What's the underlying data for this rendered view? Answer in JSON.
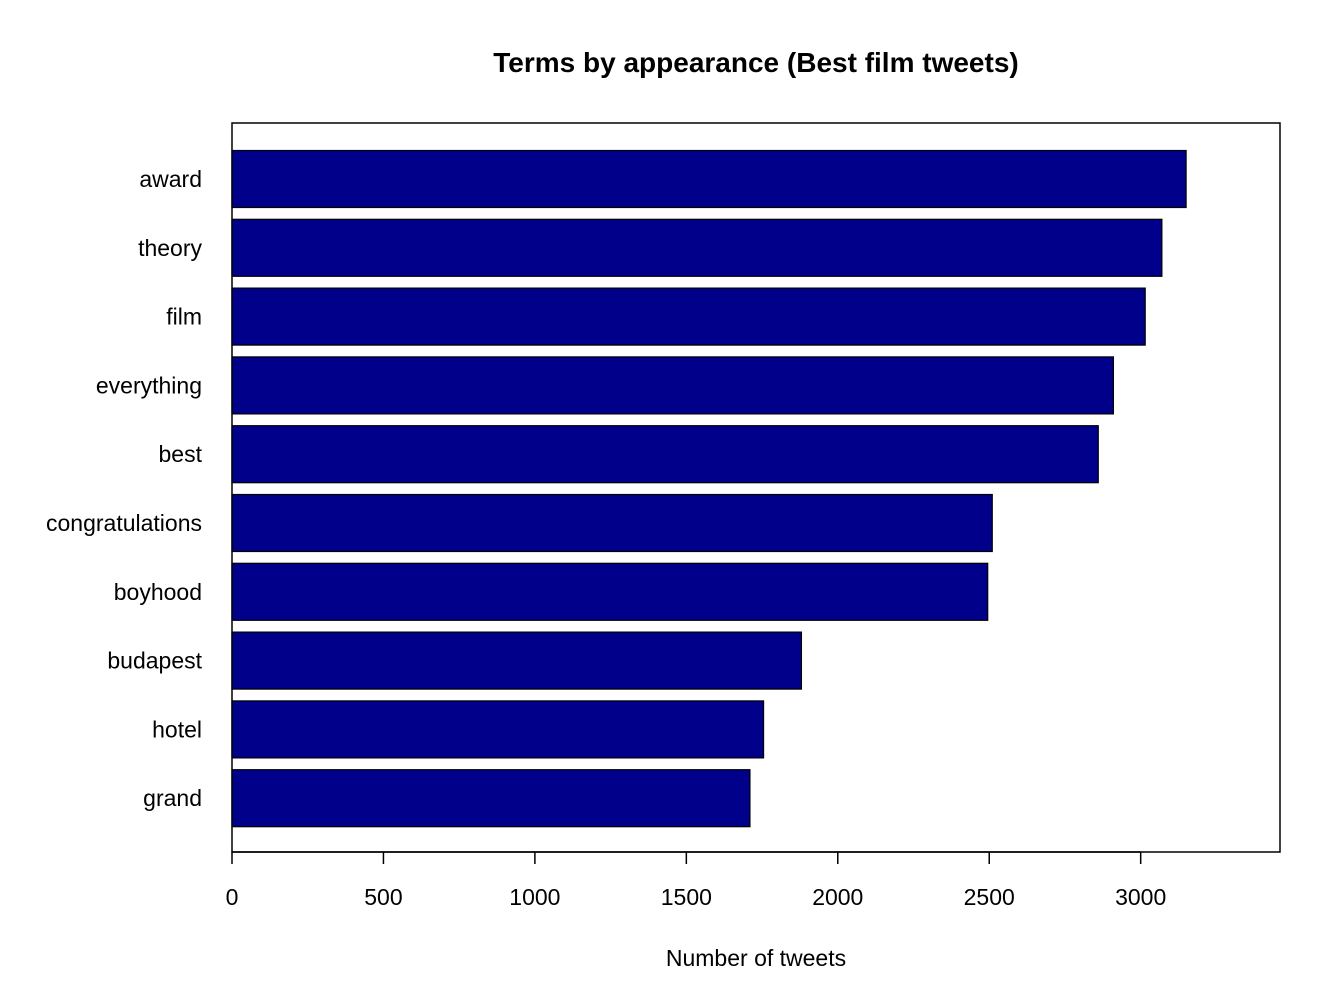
{
  "chart_data": {
    "type": "bar",
    "orientation": "horizontal",
    "title": "Terms by appearance (Best film tweets)",
    "xlabel": "Number of tweets",
    "ylabel": "",
    "categories": [
      "award",
      "theory",
      "film",
      "everything",
      "best",
      "congratulations",
      "boyhood",
      "budapest",
      "hotel",
      "grand"
    ],
    "values": [
      3150,
      3070,
      3015,
      2910,
      2860,
      2510,
      2495,
      1880,
      1755,
      1710
    ],
    "xlim": [
      0,
      3460
    ],
    "xticks": [
      0,
      500,
      1000,
      1500,
      2000,
      2500,
      3000
    ],
    "bar_color": "#00008B",
    "grid": false,
    "legend": "none"
  }
}
